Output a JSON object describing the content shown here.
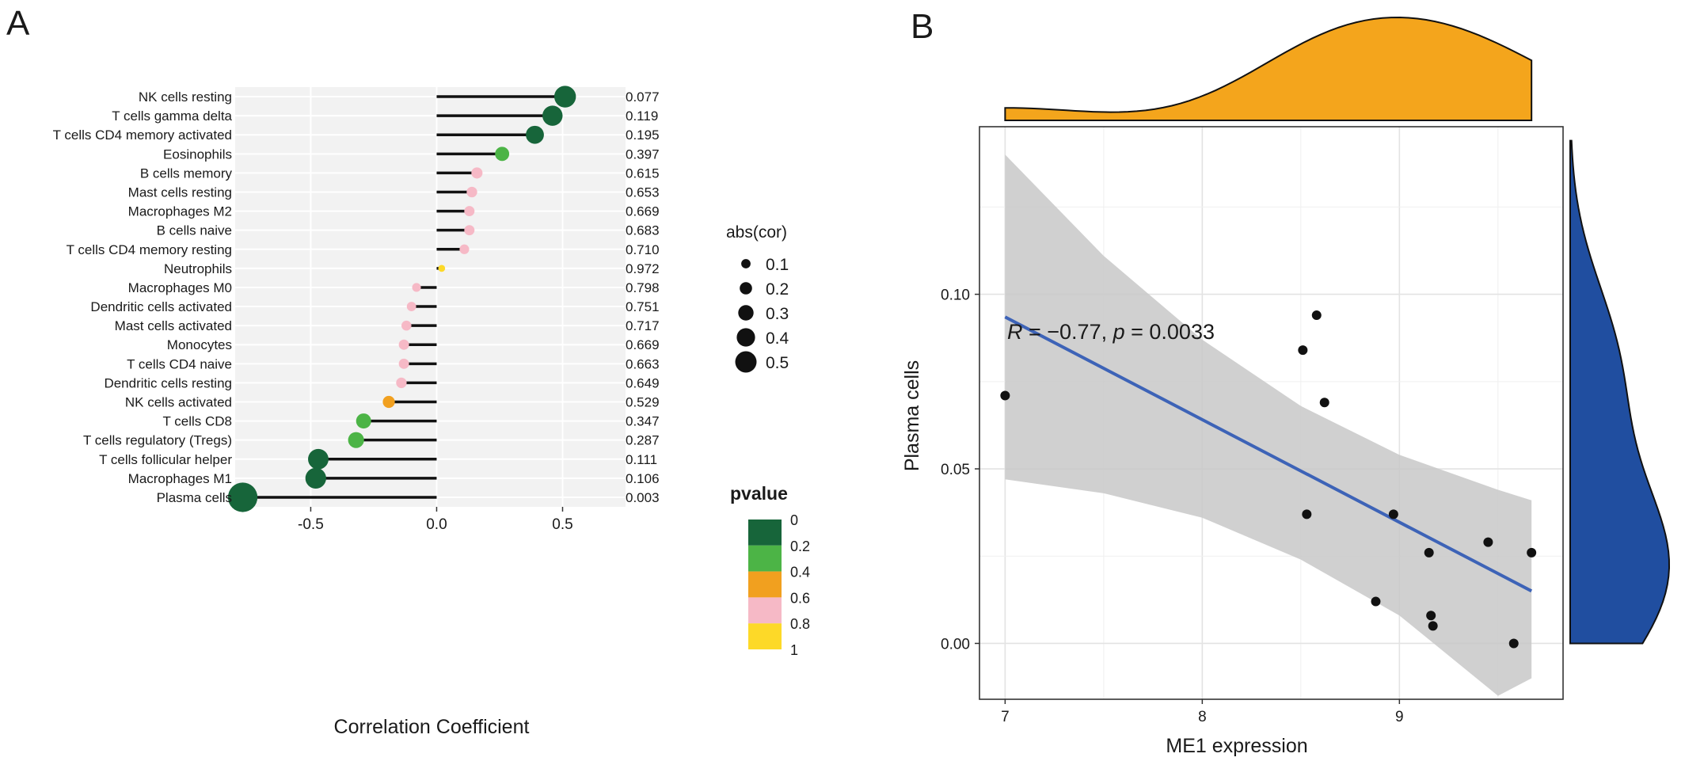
{
  "panels": {
    "a_label": "A",
    "b_label": "B"
  },
  "colors": {
    "panel_bg": "#f2f2f2",
    "grid": "#ffffff",
    "stem": "#111111",
    "highlight_p": "#e8191c",
    "p_0": "#17653a",
    "p_02": "#4cb446",
    "p_04": "#f1a01f",
    "p_06": "#f6b9c6",
    "p_08": "#fdd928",
    "scatter_point": "#111111",
    "fit_line": "#3d63b7",
    "ci_band": "#c8c8c8",
    "top_density": "#f4a51c",
    "right_density": "#204ea0"
  },
  "chart_data": [
    {
      "type": "lollipop",
      "xlabel": "Correlation Coefficient",
      "xlim": [
        -0.8,
        0.75
      ],
      "xticks": [
        "-0.5",
        "0.0",
        "0.5"
      ],
      "xtick_values": [
        -0.5,
        0.0,
        0.5
      ],
      "grid": true,
      "categories": [
        "NK cells resting",
        "T cells gamma delta",
        "T cells CD4 memory activated",
        "Eosinophils",
        "B cells memory",
        "Mast cells resting",
        "Macrophages M2",
        "B cells naive",
        "T cells CD4 memory resting",
        "Neutrophils",
        "Macrophages M0",
        "Dendritic cells activated",
        "Mast cells activated",
        "Monocytes",
        "T cells CD4 naive",
        "Dendritic cells resting",
        "NK cells activated",
        "T cells CD8",
        "T cells regulatory (Tregs)",
        "T cells follicular helper",
        "Macrophages M1",
        "Plasma cells"
      ],
      "values": [
        0.51,
        0.46,
        0.39,
        0.26,
        0.16,
        0.14,
        0.13,
        0.13,
        0.11,
        0.02,
        -0.08,
        -0.1,
        -0.12,
        -0.13,
        -0.13,
        -0.14,
        -0.19,
        -0.29,
        -0.32,
        -0.47,
        -0.48,
        -0.77
      ],
      "pvalue_labels": [
        "0.077",
        "0.119",
        "0.195",
        "0.397",
        "0.615",
        "0.653",
        "0.669",
        "0.683",
        "0.710",
        "0.972",
        "0.798",
        "0.751",
        "0.717",
        "0.669",
        "0.663",
        "0.649",
        "0.529",
        "0.347",
        "0.287",
        "0.111",
        "0.106",
        "0.003"
      ],
      "pvalues": [
        0.077,
        0.119,
        0.195,
        0.397,
        0.615,
        0.653,
        0.669,
        0.683,
        0.71,
        0.972,
        0.798,
        0.751,
        0.717,
        0.669,
        0.663,
        0.649,
        0.529,
        0.347,
        0.287,
        0.111,
        0.106,
        0.003
      ],
      "legend_size": {
        "title": "abs(cor)",
        "labels": [
          "0.1",
          "0.2",
          "0.3",
          "0.4",
          "0.5"
        ],
        "values": [
          0.1,
          0.2,
          0.3,
          0.4,
          0.5
        ]
      },
      "legend_color": {
        "title": "pvalue",
        "labels": [
          "0",
          "0.2",
          "0.4",
          "0.6",
          "0.8",
          "1"
        ]
      }
    },
    {
      "type": "scatter",
      "xlabel": "ME1 expression",
      "ylabel": "Plasma cells",
      "xlim": [
        6.87,
        9.83
      ],
      "ylim": [
        -0.016,
        0.148
      ],
      "xticks": [
        "7",
        "8",
        "9"
      ],
      "xtick_values": [
        7,
        8,
        9
      ],
      "yticks": [
        "0.00",
        "0.05",
        "0.10"
      ],
      "ytick_values": [
        0.0,
        0.05,
        0.1
      ],
      "grid": true,
      "annotation": {
        "r_symbol": "R",
        "r_text": " = −0.77, ",
        "p_symbol": "p",
        "p_text": " = 0.0033"
      },
      "x": [
        7.0,
        8.51,
        8.58,
        8.62,
        8.53,
        8.97,
        9.15,
        9.45,
        9.67,
        8.88,
        9.16,
        9.17,
        9.58
      ],
      "y": [
        0.071,
        0.084,
        0.094,
        0.069,
        0.037,
        0.037,
        0.026,
        0.029,
        0.026,
        0.012,
        0.008,
        0.005,
        0.0
      ],
      "fit": {
        "x": [
          7.0,
          9.67
        ],
        "y": [
          0.0935,
          0.015
        ]
      },
      "ci_upper": {
        "x": [
          7.0,
          7.5,
          8.0,
          8.5,
          9.0,
          9.5,
          9.67
        ],
        "y": [
          0.14,
          0.111,
          0.087,
          0.068,
          0.054,
          0.044,
          0.041
        ]
      },
      "ci_lower": {
        "x": [
          7.0,
          7.5,
          8.0,
          8.5,
          9.0,
          9.5,
          9.67
        ],
        "y": [
          0.047,
          0.043,
          0.036,
          0.024,
          0.008,
          -0.015,
          -0.01
        ]
      }
    }
  ]
}
